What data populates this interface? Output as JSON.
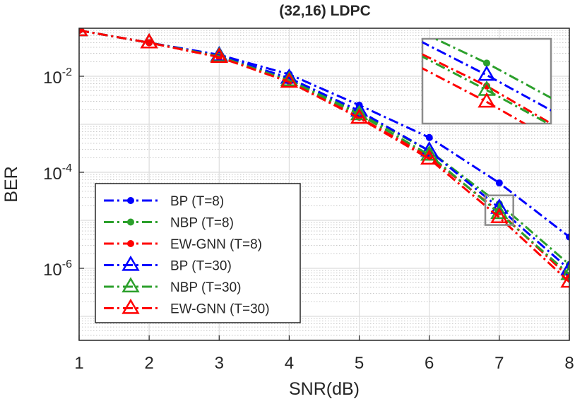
{
  "chart_data": {
    "type": "line",
    "title": "(32,16) LDPC",
    "xlabel": "SNR(dB)",
    "ylabel": "BER",
    "xlim": [
      1,
      8
    ],
    "ylim_log10": [
      -7.5,
      -1
    ],
    "y_scale": "log",
    "x_ticks": [
      "1",
      "2",
      "3",
      "4",
      "5",
      "6",
      "7",
      "8"
    ],
    "y_ticks": [
      {
        "base": "10",
        "exp": "-2",
        "log10": -2
      },
      {
        "base": "10",
        "exp": "-4",
        "log10": -4
      },
      {
        "base": "10",
        "exp": "-6",
        "log10": -6
      }
    ],
    "grid": true,
    "minor_grid": true,
    "legend_position": "bottom-left",
    "x": [
      1,
      2,
      3,
      4,
      5,
      6,
      7,
      8
    ],
    "series": [
      {
        "name": "BP (T=8)",
        "color": "#0000ff",
        "marker": "dot",
        "values": [
          0.09,
          0.05,
          0.028,
          0.011,
          0.0025,
          0.00053,
          6e-05,
          4.5e-06
        ]
      },
      {
        "name": "NBP (T=8)",
        "color": "#2ca02c",
        "marker": "dot",
        "values": [
          0.09,
          0.05,
          0.026,
          0.0085,
          0.0017,
          0.00028,
          2.2e-05,
          1.2e-06
        ]
      },
      {
        "name": "EW-GNN (T=8)",
        "color": "#ff0000",
        "marker": "dot",
        "values": [
          0.09,
          0.05,
          0.025,
          0.0078,
          0.0014,
          0.00021,
          1.5e-05,
          6.5e-07
        ]
      },
      {
        "name": "BP (T=30)",
        "color": "#0000ff",
        "marker": "triangle",
        "values": [
          0.09,
          0.05,
          0.027,
          0.0092,
          0.0019,
          0.00028,
          1.8e-05,
          9.5e-07
        ]
      },
      {
        "name": "NBP (T=30)",
        "color": "#2ca02c",
        "marker": "triangle",
        "values": [
          0.09,
          0.05,
          0.026,
          0.0082,
          0.0016,
          0.00023,
          1.4e-05,
          7.5e-07
        ]
      },
      {
        "name": "EW-GNN (T=30)",
        "color": "#ff0000",
        "marker": "triangle",
        "values": [
          0.09,
          0.05,
          0.025,
          0.0076,
          0.00135,
          0.00019,
          1.15e-05,
          5.2e-07
        ]
      }
    ],
    "inset": {
      "description": "zoom of region around SNR 7 dB",
      "x_range": [
        6.8,
        7.2
      ],
      "y_range": [
        8e-06,
        3.3e-05
      ]
    }
  }
}
